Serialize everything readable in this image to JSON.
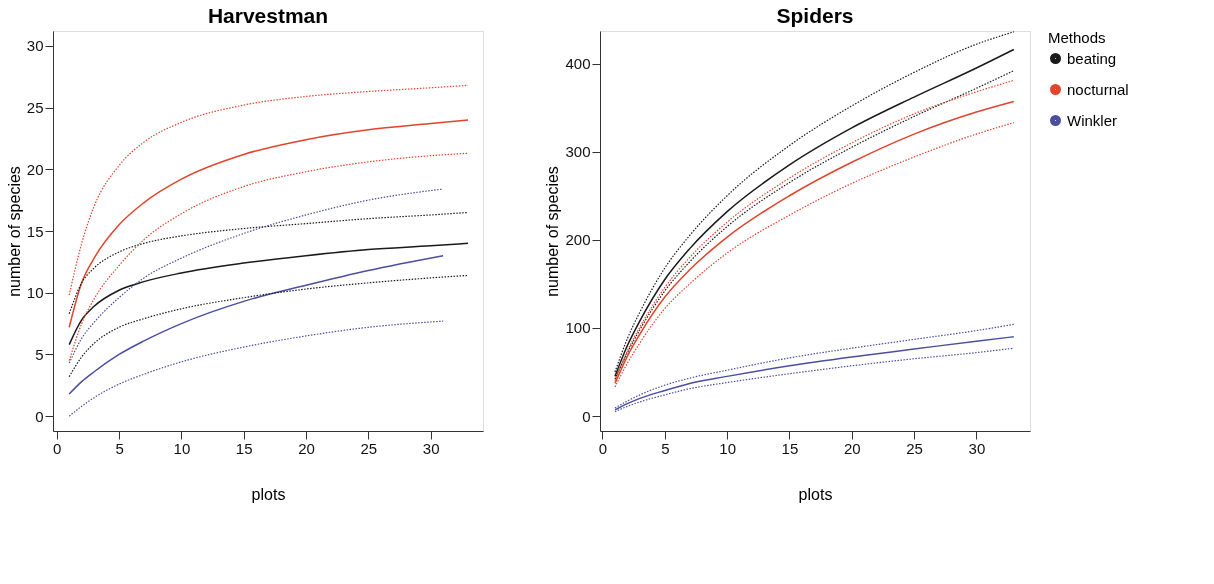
{
  "chart_data": [
    {
      "type": "line",
      "title": "Harvestman",
      "xlabel": "plots",
      "ylabel": "number of species",
      "xlim": [
        -0.3,
        34.2
      ],
      "ylim": [
        -1.2,
        31.2
      ],
      "xticks": [
        0,
        5,
        10,
        15,
        20,
        25,
        30
      ],
      "yticks": [
        0,
        5,
        10,
        15,
        20,
        25,
        30
      ],
      "grid": false,
      "marker": "none",
      "x": [
        1,
        2,
        3,
        5,
        7,
        10,
        15,
        20,
        25,
        30,
        33
      ],
      "series": [
        {
          "color": "#1a1a1a",
          "line_style": "solid",
          "values": [
            5.8,
            7.8,
            8.9,
            10.2,
            10.9,
            11.6,
            12.4,
            13.0,
            13.5,
            13.8,
            14.0
          ]
        },
        {
          "color": "#e0442c",
          "line_style": "solid",
          "values": [
            7.2,
            10.8,
            12.8,
            15.5,
            17.3,
            19.2,
            21.2,
            22.4,
            23.2,
            23.7,
            24.0
          ]
        },
        {
          "color": "#4a4fa0",
          "line_style": "solid",
          "x": [
            1,
            2,
            3,
            5,
            7,
            10,
            15,
            20,
            25,
            31
          ],
          "values": [
            1.8,
            2.8,
            3.6,
            5.0,
            6.1,
            7.5,
            9.3,
            10.6,
            11.8,
            13.0
          ]
        },
        {
          "color": "#1a1a1a",
          "line_style": "dotted",
          "values": [
            3.2,
            4.8,
            5.9,
            7.2,
            7.9,
            8.7,
            9.6,
            10.3,
            10.8,
            11.2,
            11.4
          ]
        },
        {
          "color": "#1a1a1a",
          "line_style": "dotted",
          "values": [
            8.3,
            10.8,
            12.0,
            13.3,
            14.0,
            14.6,
            15.2,
            15.6,
            16.0,
            16.3,
            16.5
          ]
        },
        {
          "color": "#e0442c",
          "line_style": "dotted",
          "values": [
            4.5,
            7.5,
            9.5,
            12.2,
            14.3,
            16.4,
            18.6,
            19.8,
            20.6,
            21.1,
            21.3
          ]
        },
        {
          "color": "#e0442c",
          "line_style": "dotted",
          "values": [
            9.8,
            14.0,
            17.0,
            20.3,
            22.2,
            23.8,
            25.2,
            25.9,
            26.3,
            26.6,
            26.8
          ]
        },
        {
          "color": "#4a4fa0",
          "line_style": "dotted",
          "x": [
            1,
            2,
            3,
            5,
            7,
            10,
            15,
            20,
            25,
            31
          ],
          "values": [
            0,
            0.8,
            1.5,
            2.6,
            3.4,
            4.4,
            5.6,
            6.5,
            7.2,
            7.7
          ]
        },
        {
          "color": "#4a4fa0",
          "line_style": "dotted",
          "x": [
            1,
            2,
            3,
            5,
            7,
            10,
            15,
            20,
            25,
            31
          ],
          "values": [
            4.3,
            6.3,
            7.6,
            9.6,
            11.2,
            12.8,
            14.8,
            16.3,
            17.5,
            18.4
          ]
        }
      ]
    },
    {
      "type": "line",
      "title": "Spiders",
      "xlabel": "plots",
      "ylabel": "number of species",
      "legend_title": "Methods",
      "xlim": [
        -0.2,
        34.3
      ],
      "ylim": [
        -17,
        437
      ],
      "xticks": [
        0,
        5,
        10,
        15,
        20,
        25,
        30
      ],
      "yticks": [
        0,
        100,
        200,
        300,
        400
      ],
      "grid": false,
      "legend": "top right",
      "marker": "none",
      "x": [
        1,
        2,
        3,
        5,
        7,
        10,
        15,
        20,
        25,
        30,
        33
      ],
      "series": [
        {
          "name": "beating",
          "color": "#1a1a1a",
          "line_style": "solid",
          "values": [
            45,
            80,
            108,
            155,
            190,
            232,
            285,
            327,
            362,
            395,
            416
          ]
        },
        {
          "name": "nocturnal",
          "color": "#e0442c",
          "line_style": "solid",
          "values": [
            37,
            68,
            93,
            135,
            166,
            203,
            250,
            288,
            320,
            345,
            357
          ]
        },
        {
          "name": "Winkler",
          "color": "#4a4fa0",
          "line_style": "solid",
          "values": [
            7,
            14,
            20,
            29,
            37,
            45,
            57,
            67,
            76,
            85,
            90
          ]
        },
        {
          "color": "#1a1a1a",
          "line_style": "dotted",
          "values": [
            42,
            72,
            98,
            142,
            175,
            215,
            265,
            305,
            340,
            372,
            392
          ]
        },
        {
          "color": "#1a1a1a",
          "line_style": "dotted",
          "values": [
            50,
            88,
            118,
            168,
            205,
            250,
            307,
            352,
            390,
            422,
            436
          ]
        },
        {
          "color": "#e0442c",
          "line_style": "dotted",
          "values": [
            33,
            60,
            83,
            122,
            150,
            185,
            228,
            264,
            294,
            320,
            333
          ]
        },
        {
          "color": "#e0442c",
          "line_style": "dotted",
          "values": [
            40,
            74,
            101,
            146,
            180,
            220,
            270,
            310,
            343,
            368,
            381
          ]
        },
        {
          "color": "#4a4fa0",
          "line_style": "dotted",
          "values": [
            5,
            11,
            16,
            24,
            31,
            38,
            48,
            57,
            65,
            72,
            77
          ]
        },
        {
          "color": "#4a4fa0",
          "line_style": "dotted",
          "values": [
            9,
            17,
            24,
            35,
            43,
            52,
            66,
            77,
            87,
            97,
            104
          ]
        }
      ]
    }
  ]
}
